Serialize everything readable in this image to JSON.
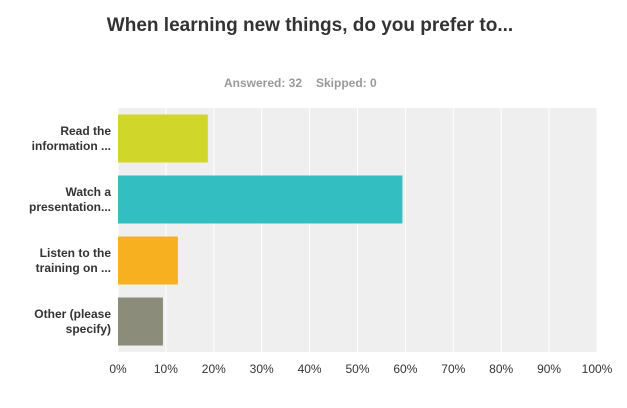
{
  "chart_data": {
    "type": "barh",
    "title": "When learning new things, do you prefer to...",
    "answered": "Answered: 32",
    "skipped": "Skipped: 0",
    "categories": [
      "Read the information ...",
      "Watch a presentation...",
      "Listen to the training on ...",
      "Other (please specify)"
    ],
    "values": [
      18.75,
      59.38,
      12.5,
      9.38
    ],
    "colors": [
      "#d1d62a",
      "#33bfc1",
      "#f7b120",
      "#8c8c7a"
    ],
    "xlim": [
      0,
      100
    ],
    "xticks": [
      {
        "value": 0,
        "label": "0%"
      },
      {
        "value": 10,
        "label": "10%"
      },
      {
        "value": 20,
        "label": "20%"
      },
      {
        "value": 30,
        "label": "30%"
      },
      {
        "value": 40,
        "label": "40%"
      },
      {
        "value": 50,
        "label": "50%"
      },
      {
        "value": 60,
        "label": "60%"
      },
      {
        "value": 70,
        "label": "70%"
      },
      {
        "value": 80,
        "label": "80%"
      },
      {
        "value": 90,
        "label": "90%"
      },
      {
        "value": 100,
        "label": "100%"
      }
    ],
    "grid": true
  }
}
